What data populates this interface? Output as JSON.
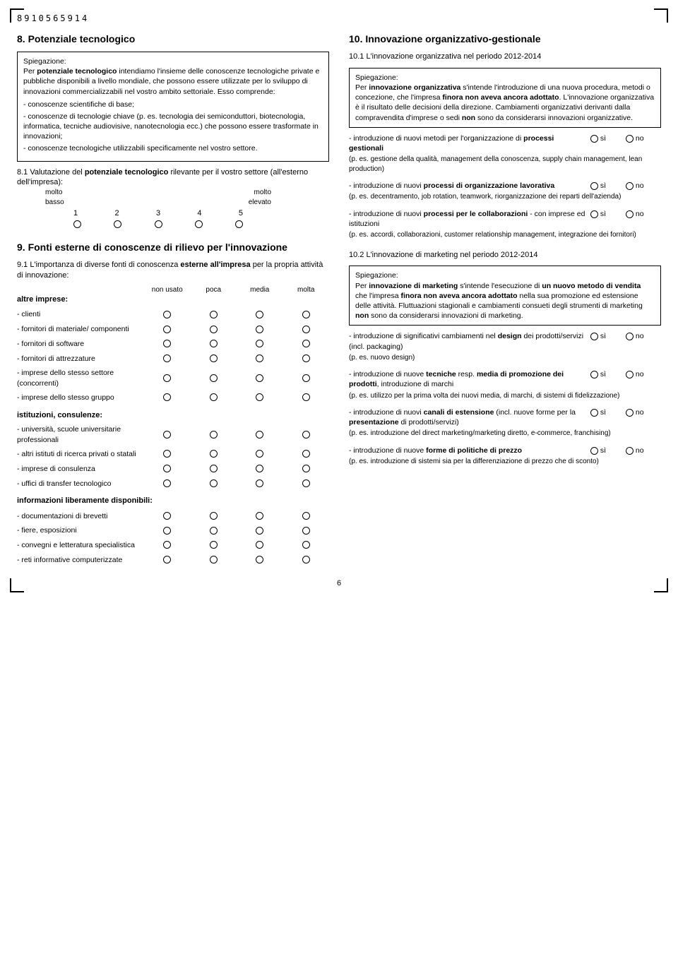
{
  "barcode": "8910565914",
  "page_number": "6",
  "section8": {
    "heading": "8. Potenziale tecnologico",
    "box_label": "Spiegazione:",
    "box_html": "Per <b>potenziale tecnologico</b> intendiamo l'insieme delle conoscenze tecnologiche private e pubbliche disponibili a livello mondiale, che possono essere utilizzate per lo sviluppo di innovazioni commercializzabili nel vostro ambito settoriale. Esso comprende:",
    "bullets": [
      "- conoscenze scientifiche di base;",
      "- conoscenze di tecnologie chiave (p. es. tecnologia dei semiconduttori, biotecnologia, informatica, tecniche audiovisive, nanotecnologia ecc.) che possono essere trasformate in innovazioni;",
      "- conoscenze tecnologiche utilizzabili specificamente nel vostro settore."
    ],
    "q81_html": "8.1 Valutazione del <b>potenziale tecnologico</b> rilevante per il vostro settore (all'esterno dell'impresa):",
    "scale_low": "molto\nbasso",
    "scale_high": "molto\nelevato",
    "scale_values": [
      "1",
      "2",
      "3",
      "4",
      "5"
    ]
  },
  "section9": {
    "heading": "9. Fonti esterne di conoscenze di rilievo per l'innovazione",
    "q91_html": "9.1 L'importanza di diverse fonti di conoscenza <b>esterne all'impresa</b> per la propria attività di innovazione:",
    "cols": [
      "non usato",
      "poca",
      "media",
      "molta"
    ],
    "group1_label": "altre imprese:",
    "group1": [
      "- clienti",
      "- fornitori di materiale/ componenti",
      "- fornitori di software",
      "- fornitori di attrezzature",
      "- imprese dello stesso settore (concorrenti)",
      "- imprese dello stesso gruppo"
    ],
    "group2_label": "istituzioni, consulenze:",
    "group2": [
      "- università, scuole universitarie professionali",
      "- altri istituti di ricerca privati o statali",
      "- imprese di consulenza",
      "- uffici di transfer tecnologico"
    ],
    "group3_label": "informazioni liberamente disponibili:",
    "group3": [
      "- documentazioni di brevetti",
      "- fiere, esposizioni",
      "- convegni e letteratura specialistica",
      "- reti informative computerizzate"
    ]
  },
  "section10": {
    "heading": "10. Innovazione organizzativo-gestionale",
    "q101": "10.1 L'innovazione organizzativa nel periodo 2012-2014",
    "box1_label": "Spiegazione:",
    "box1_html": "Per <b>innovazione organizzativa</b> s'intende l'introduzione di una nuova procedura, metodi o concezione, che l'impresa <b>finora non aveva ancora adottato</b>. L'innovazione organizzativa è il risultato delle decisioni della direzione. Cambiamenti organizzativi derivanti dalla compravendita d'imprese o sedi <b>non</b> sono da considerarsi innovazioni organizzative.",
    "yes": "sì",
    "no": "no",
    "items101": [
      {
        "text_html": "- introduzione di nuovi metodi per l'organizzazione di <b>processi gestionali</b>",
        "note": "(p. es. gestione della qualità, management della conoscenza, supply chain management, lean production)"
      },
      {
        "text_html": "- introduzione di nuovi <b>processi di organizzazione lavorativa</b>",
        "note": "(p. es. decentramento, job rotation, teamwork, riorganizzazione dei reparti dell'azienda)"
      },
      {
        "text_html": "- introduzione di nuovi <b>processi per le collaborazioni</b> - con imprese ed istituzioni",
        "note": "(p. es. accordi, collaborazioni, customer relationship management, integrazione dei fornitori)"
      }
    ],
    "q102": "10.2 L'innovazione di marketing nel periodo 2012-2014",
    "box2_label": "Spiegazione:",
    "box2_html": "Per <b>innovazione di marketing</b> s'intende l'esecuzione di <b>un nuovo metodo di vendita</b> che l'impresa <b>finora non aveva ancora adottato</b> nella sua promozione ed estensione delle attività. Fluttuazioni stagionali e cambiamenti consueti degli strumenti di marketing <b>non</b> sono da considerarsi innovazioni di marketing.",
    "items102": [
      {
        "text_html": "- introduzione di significativi cambiamenti nel <b>design</b> dei prodotti/servizi (incl. packaging)",
        "note": "(p. es. nuovo design)"
      },
      {
        "text_html": "- introduzione di nuove <b>tecniche</b> resp. <b>media di promozione dei prodotti</b>, introduzione di marchi",
        "note": "(p. es. utilizzo per la prima volta dei nuovi media, di marchi, di sistemi di fidelizzazione)"
      },
      {
        "text_html": "- introduzione di nuovi <b>canali di estensione</b> (incl. nuove forme per la <b>presentazione</b> di prodotti/servizi)",
        "note": "(p. es. introduzione del direct marketing/marketing diretto, e-commerce, franchising)"
      },
      {
        "text_html": "- introduzione di nuove <b>forme di politiche di prezzo</b>",
        "note": "(p. es. introduzione di sistemi sia per la differenziazione di prezzo che di sconto)"
      }
    ]
  }
}
